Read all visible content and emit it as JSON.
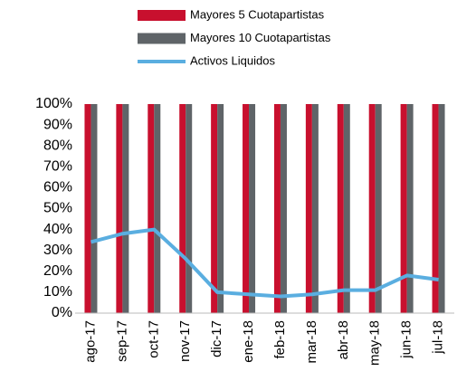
{
  "chart_data": {
    "type": "bar_line",
    "categories": [
      "ago-17",
      "sep-17",
      "oct-17",
      "nov-17",
      "dic-17",
      "ene-18",
      "feb-18",
      "mar-18",
      "abr-18",
      "may-18",
      "jun-18",
      "jul-18"
    ],
    "series": [
      {
        "name": "Mayores 5 Cuotapartistas",
        "color": "#c8102e",
        "type": "bar",
        "values": [
          100,
          100,
          100,
          100,
          100,
          100,
          100,
          100,
          100,
          100,
          100,
          100
        ]
      },
      {
        "name": "Mayores 10 Cuotapartistas",
        "color": "#5f6468",
        "type": "bar",
        "values": [
          100,
          100,
          100,
          100,
          100,
          100,
          100,
          100,
          100,
          100,
          100,
          100
        ]
      },
      {
        "name": "Activos Liquidos",
        "color": "#5aaee0",
        "type": "line",
        "values": [
          34,
          38,
          40,
          26,
          10,
          9,
          8,
          9,
          11,
          11,
          18,
          16
        ]
      }
    ],
    "ylim": [
      0,
      100
    ],
    "yticks": [
      {
        "value": 0,
        "label": "0%"
      },
      {
        "value": 10,
        "label": "10%"
      },
      {
        "value": 20,
        "label": "20%"
      },
      {
        "value": 30,
        "label": "30%"
      },
      {
        "value": 40,
        "label": "40%"
      },
      {
        "value": 50,
        "label": "50%"
      },
      {
        "value": 60,
        "label": "60%"
      },
      {
        "value": 70,
        "label": "70%"
      },
      {
        "value": 80,
        "label": "80%"
      },
      {
        "value": 90,
        "label": "90%"
      },
      {
        "value": 100,
        "label": "100%"
      }
    ],
    "legend": "top"
  }
}
